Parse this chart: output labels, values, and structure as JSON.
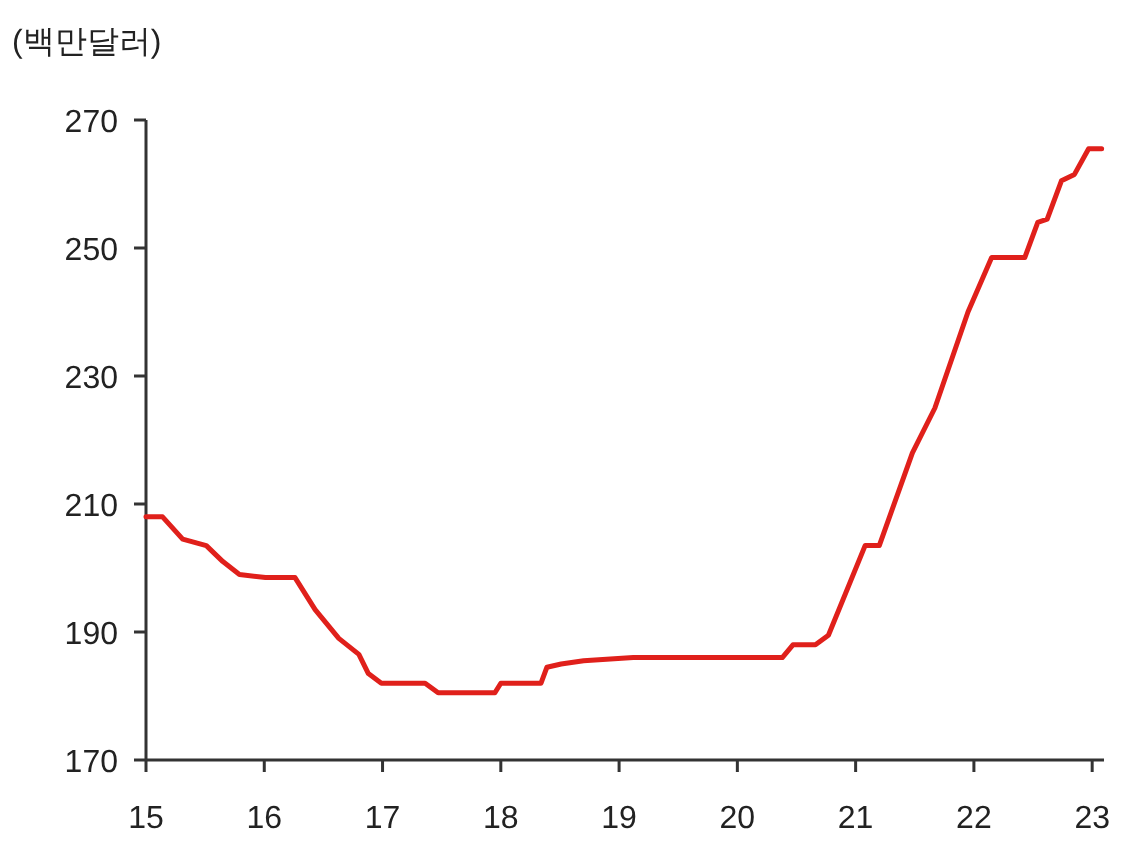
{
  "chart_data": {
    "type": "line",
    "ylabel": "(백만달러)",
    "x": [
      15.0,
      15.14,
      15.31,
      15.51,
      15.65,
      15.79,
      16.01,
      16.26,
      16.43,
      16.63,
      16.8,
      16.88,
      16.99,
      17.36,
      17.47,
      17.95,
      18.0,
      18.34,
      18.39,
      18.51,
      18.7,
      19.12,
      20.38,
      20.47,
      20.66,
      20.77,
      21.08,
      21.2,
      21.48,
      21.67,
      21.95,
      22.15,
      22.43,
      22.54,
      22.62,
      22.74,
      22.85,
      22.97,
      23.08
    ],
    "series": [
      {
        "color": "#e0201b",
        "values": [
          208,
          208,
          204.5,
          203.5,
          201,
          199,
          198.5,
          198.5,
          193.5,
          189,
          186.5,
          183.5,
          182,
          182,
          180.5,
          180.5,
          182,
          182,
          184.5,
          185,
          185.5,
          186,
          186,
          188,
          188,
          189.5,
          203.5,
          203.5,
          218,
          225,
          240,
          248.5,
          248.5,
          254,
          254.5,
          260.5,
          261.5,
          265.5,
          265.5
        ]
      }
    ],
    "xlim": [
      15,
      23.1
    ],
    "xticks": [
      15,
      16,
      17,
      18,
      19,
      20,
      21,
      22,
      23
    ],
    "ylim": [
      170,
      270
    ],
    "yticks": [
      170,
      190,
      210,
      230,
      250,
      270
    ],
    "grid": false,
    "marker": "none",
    "line_style": "solid"
  }
}
